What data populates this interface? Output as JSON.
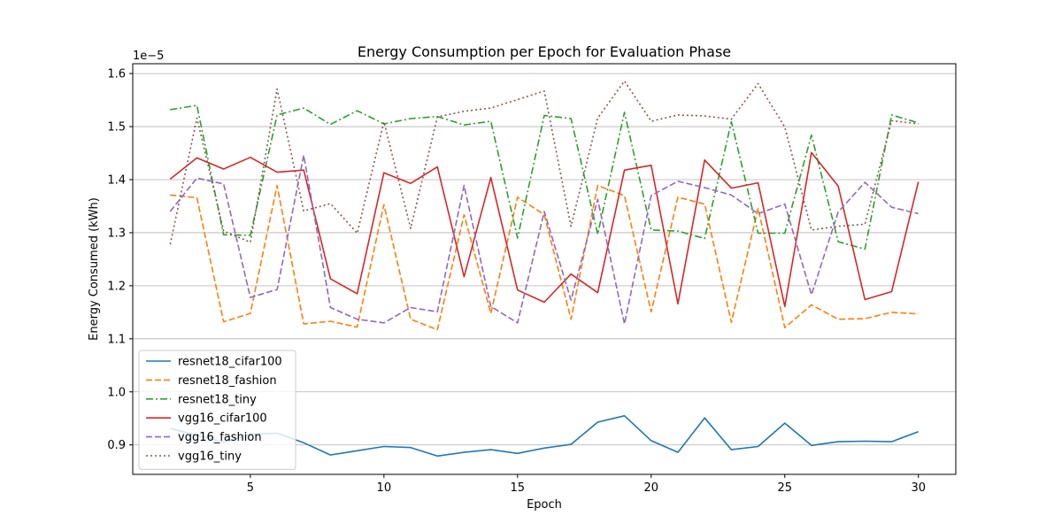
{
  "chart_data": {
    "type": "line",
    "title": "Energy Consumption per Epoch for Evaluation Phase",
    "xlabel": "Epoch",
    "ylabel": "Energy Consumed (kWh)",
    "offset_text": "1e−5",
    "xlim": [
      0.6,
      31.4
    ],
    "ylim": [
      0.8445,
      1.6185
    ],
    "xticks": [
      5,
      10,
      15,
      20,
      25,
      30
    ],
    "yticks": [
      0.9,
      1.0,
      1.1,
      1.2,
      1.3,
      1.4,
      1.5,
      1.6
    ],
    "ytick_labels": [
      "0.9",
      "1.0",
      "1.1",
      "1.2",
      "1.3",
      "1.4",
      "1.5",
      "1.6"
    ],
    "grid": "y",
    "legend_position": "lower-left",
    "x": [
      2,
      3,
      4,
      5,
      6,
      7,
      8,
      9,
      10,
      11,
      12,
      13,
      14,
      15,
      16,
      17,
      18,
      19,
      20,
      21,
      22,
      23,
      24,
      25,
      26,
      27,
      28,
      29,
      30
    ],
    "series": [
      {
        "name": "resnet18_cifar100",
        "color": "#1f77b4",
        "dash": "solid",
        "values": [
          0.931,
          0.918,
          0.905,
          0.92,
          0.922,
          0.904,
          0.881,
          0.889,
          0.897,
          0.895,
          0.879,
          0.886,
          0.891,
          0.884,
          0.894,
          0.901,
          0.943,
          0.955,
          0.908,
          0.886,
          0.951,
          0.891,
          0.897,
          0.941,
          0.899,
          0.906,
          0.907,
          0.906,
          0.925
        ]
      },
      {
        "name": "resnet18_fashion",
        "color": "#ff7f0e",
        "dash": "dashed",
        "values": [
          1.371,
          1.366,
          1.132,
          1.148,
          1.389,
          1.128,
          1.133,
          1.122,
          1.353,
          1.137,
          1.117,
          1.334,
          1.148,
          1.367,
          1.334,
          1.137,
          1.389,
          1.37,
          1.151,
          1.367,
          1.354,
          1.131,
          1.346,
          1.121,
          1.164,
          1.137,
          1.138,
          1.15,
          1.147
        ]
      },
      {
        "name": "resnet18_tiny",
        "color": "#2ca02c",
        "dash": "dashdot",
        "values": [
          1.532,
          1.54,
          1.296,
          1.295,
          1.522,
          1.535,
          1.504,
          1.53,
          1.505,
          1.515,
          1.519,
          1.503,
          1.51,
          1.29,
          1.521,
          1.515,
          1.297,
          1.527,
          1.305,
          1.303,
          1.289,
          1.509,
          1.299,
          1.299,
          1.484,
          1.283,
          1.269,
          1.522,
          1.507
        ]
      },
      {
        "name": "vgg16_cifar100",
        "color": "#d62728",
        "dash": "solid",
        "values": [
          1.401,
          1.441,
          1.42,
          1.442,
          1.414,
          1.418,
          1.213,
          1.185,
          1.413,
          1.393,
          1.424,
          1.217,
          1.404,
          1.192,
          1.169,
          1.222,
          1.187,
          1.418,
          1.427,
          1.166,
          1.437,
          1.384,
          1.394,
          1.161,
          1.451,
          1.388,
          1.174,
          1.189,
          1.396
        ]
      },
      {
        "name": "vgg16_fashion",
        "color": "#9467bd",
        "dash": "dashed",
        "values": [
          1.34,
          1.403,
          1.392,
          1.178,
          1.193,
          1.446,
          1.159,
          1.137,
          1.13,
          1.159,
          1.151,
          1.389,
          1.161,
          1.13,
          1.34,
          1.173,
          1.363,
          1.128,
          1.37,
          1.397,
          1.385,
          1.371,
          1.336,
          1.354,
          1.183,
          1.339,
          1.395,
          1.348,
          1.336
        ]
      },
      {
        "name": "vgg16_tiny",
        "color": "#8c564b",
        "dash": "dotted",
        "values": [
          1.278,
          1.516,
          1.303,
          1.282,
          1.571,
          1.341,
          1.355,
          1.299,
          1.509,
          1.308,
          1.518,
          1.529,
          1.535,
          1.551,
          1.567,
          1.312,
          1.516,
          1.586,
          1.51,
          1.522,
          1.52,
          1.514,
          1.581,
          1.499,
          1.305,
          1.312,
          1.316,
          1.511,
          1.505
        ]
      }
    ]
  }
}
